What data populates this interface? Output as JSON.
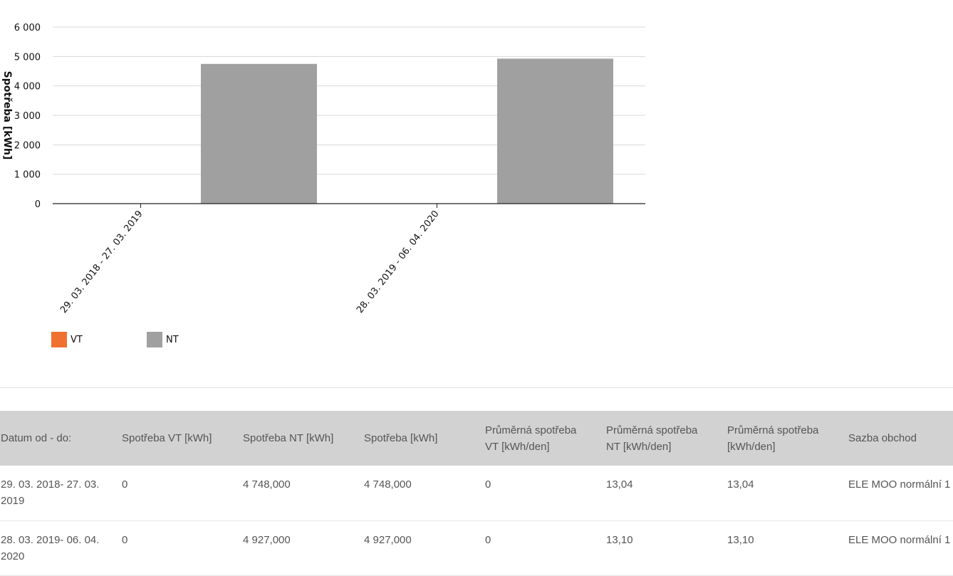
{
  "chart_data": {
    "type": "bar",
    "categories": [
      "29. 03. 2018 - 27. 03. 2019",
      "28. 03. 2019 - 06. 04. 2020"
    ],
    "series": [
      {
        "name": "VT",
        "color": "#f07030",
        "values": [
          0,
          0
        ]
      },
      {
        "name": "NT",
        "color": "#a0a0a0",
        "values": [
          4748,
          4927
        ]
      }
    ],
    "ylabel": "Spotřeba [kWh]",
    "ylim": [
      0,
      6000
    ],
    "yticks": [
      0,
      1000,
      2000,
      3000,
      4000,
      5000,
      6000
    ],
    "ytick_labels": [
      "0",
      "1 000",
      "2 000",
      "3 000",
      "4 000",
      "5 000",
      "6 000"
    ],
    "grid": true,
    "legend": "bottom-left"
  },
  "legend": {
    "items": [
      {
        "label": "VT",
        "color": "#f07030"
      },
      {
        "label": "NT",
        "color": "#a0a0a0"
      }
    ]
  },
  "table": {
    "headers": [
      "Datum od - do:",
      "Spotřeba VT [kWh]",
      "Spotřeba NT [kWh]",
      "Spotřeba [kWh]",
      "Průměrná spotřeba VT [kWh/den]",
      "Průměrná spotřeba NT [kWh/den]",
      "Průměrná spotřeba [kWh/den]",
      "Sazba obchod"
    ],
    "rows": [
      [
        "29. 03. 2018- 27. 03. 2019",
        "0",
        "4 748,000",
        "4 748,000",
        "0",
        "13,04",
        "13,04",
        "ELE MOO normální 1"
      ],
      [
        "28. 03. 2019- 06. 04. 2020",
        "0",
        "4 927,000",
        "4 927,000",
        "0",
        "13,10",
        "13,10",
        "ELE MOO normální 1"
      ]
    ]
  }
}
